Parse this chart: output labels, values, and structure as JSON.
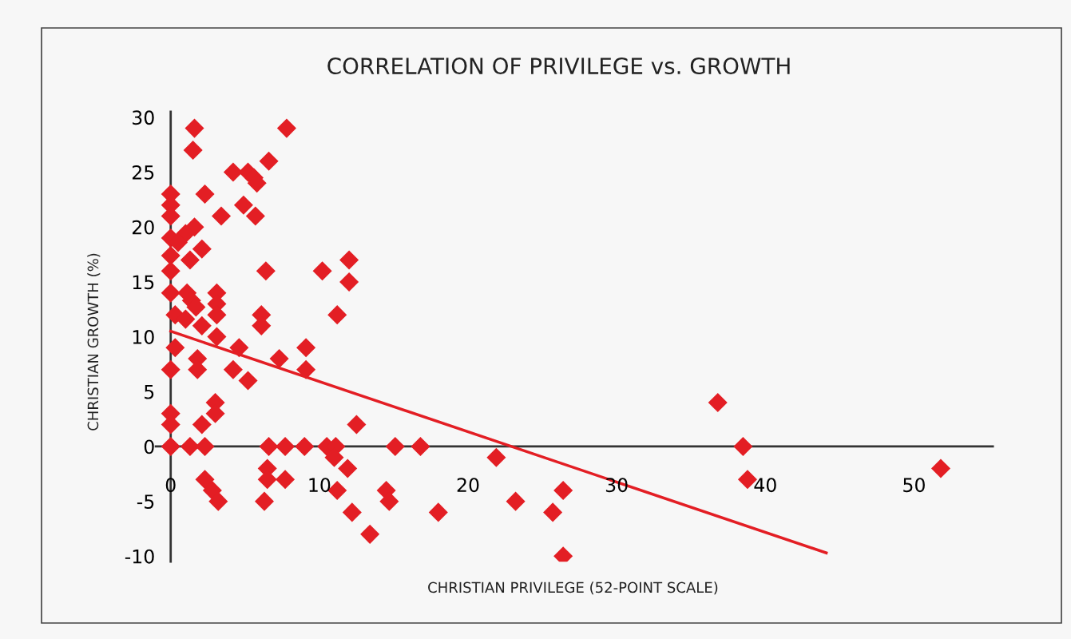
{
  "chart_data": {
    "type": "scatter",
    "title": "CORRELATION OF PRIVILEGE vs. GROWTH",
    "xlabel": "CHRISTIAN PRIVILEGE (52-POINT SCALE)",
    "ylabel": "CHRISTIAN GROWTH (%)",
    "xlim": [
      -1,
      55.3
    ],
    "ylim": [
      -10.5,
      30.5
    ],
    "xticks": [
      0,
      10,
      20,
      30,
      40,
      50
    ],
    "yticks": [
      -10,
      -5,
      0,
      5,
      10,
      15,
      20,
      25,
      30
    ],
    "grid": false,
    "marker": "diamond",
    "series": [
      {
        "color": "#e31e24",
        "x": [
          1.6,
          1.5,
          7.8,
          6.6,
          4.2,
          5.2,
          5.6,
          5.8,
          2.3,
          4.9,
          5.7,
          3.4,
          0,
          0,
          0,
          1.6,
          1.0,
          0,
          0.5,
          2.1,
          0,
          1.3,
          0,
          6.4,
          10.2,
          12.0,
          12.0,
          11.2,
          0,
          1.1,
          1.4,
          1.7,
          0.3,
          1.0,
          3.1,
          3.1,
          3.1,
          6.1,
          6.1,
          2.1,
          3.1,
          0.3,
          0,
          1.8,
          1.8,
          4.2,
          5.2,
          4.6,
          7.3,
          9.1,
          9.1,
          3.0,
          3.0,
          2.1,
          0,
          0,
          0,
          1.3,
          2.3,
          6.6,
          7.7,
          9.0,
          10.5,
          11.1,
          11.0,
          12.5,
          11.9,
          11.2,
          12.2,
          2.3,
          2.8,
          3.2,
          6.5,
          6.5,
          7.7,
          6.3,
          15.1,
          16.8,
          21.9,
          13.4,
          14.5,
          14.7,
          18.0,
          23.2,
          26.4,
          25.7,
          26.4,
          36.8,
          38.5,
          38.8,
          51.8
        ],
        "values": [
          29,
          27,
          29,
          26,
          25,
          25,
          24.5,
          24,
          23,
          22,
          21,
          21,
          23,
          22,
          21,
          20,
          19.4,
          19,
          18.6,
          18,
          17.4,
          17,
          16,
          16,
          16,
          17,
          15,
          12,
          14,
          14,
          13.3,
          12.7,
          12,
          11.6,
          14,
          13,
          12,
          12,
          11,
          11,
          10,
          9,
          7,
          8,
          7,
          7,
          6,
          9,
          8,
          9,
          7,
          4,
          3,
          2,
          3,
          2,
          0,
          0,
          0,
          0,
          0,
          0,
          0,
          0,
          -1,
          2,
          -2,
          -4,
          -6,
          -3,
          -4,
          -5,
          -2,
          -3,
          -3,
          -5,
          0,
          0,
          -1,
          -8,
          -4,
          -5,
          -6,
          -5,
          -4,
          -6,
          -10,
          4,
          0,
          -3,
          -2
        ]
      },
      {
        "type": "line",
        "color": "#e31e24",
        "marker": "none",
        "line_style": "solid",
        "x": [
          0,
          44.1
        ],
        "values": [
          10.5,
          -9.7
        ]
      }
    ]
  }
}
